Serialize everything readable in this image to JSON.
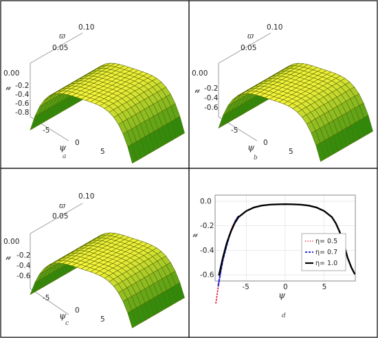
{
  "panels": {
    "a": {
      "letter": "a",
      "z_ticks": [
        "-0.2",
        "-0.4",
        "-0.6",
        "-0.8"
      ]
    },
    "b": {
      "letter": "b",
      "z_ticks": [
        "-0.2",
        "-0.4",
        "-0.6"
      ]
    },
    "c": {
      "letter": "c",
      "z_ticks": [
        "-0.2",
        "-0.4",
        "-0.6"
      ]
    },
    "d": {
      "letter": "d"
    }
  },
  "axis_symbols": {
    "x": "ψ",
    "y": "ϖ",
    "z": "𝓊"
  },
  "surface_axes": {
    "x_ticks": [
      "-5",
      "0",
      "5"
    ],
    "y_ticks": [
      "0.00",
      "0.05",
      "0.10"
    ]
  },
  "colors": {
    "surface_light": "#f8f43c",
    "surface_dark": "#2f8a0c",
    "mesh": "#5a6b00",
    "eta05": "#e8193c",
    "eta07": "#1f2fd6",
    "eta10": "#000000"
  },
  "chart_data": [
    {
      "type": "surface",
      "panel": "a",
      "xlabel": "ψ",
      "ylabel": "ϖ",
      "zlabel": "𝓊",
      "xlim": [
        -9,
        9
      ],
      "ylim": [
        0,
        0.1
      ],
      "zlim": [
        -0.85,
        0
      ],
      "grid": true
    },
    {
      "type": "surface",
      "panel": "b",
      "xlabel": "ψ",
      "ylabel": "ϖ",
      "zlabel": "𝓊",
      "xlim": [
        -9,
        9
      ],
      "ylim": [
        0,
        0.1
      ],
      "zlim": [
        -0.7,
        0
      ],
      "grid": true
    },
    {
      "type": "surface",
      "panel": "c",
      "xlabel": "ψ",
      "ylabel": "ϖ",
      "zlabel": "𝓊",
      "xlim": [
        -9,
        9
      ],
      "ylim": [
        0,
        0.1
      ],
      "zlim": [
        -0.65,
        0
      ],
      "grid": true
    },
    {
      "type": "line",
      "panel": "d",
      "xlabel": "ψ",
      "ylabel": "𝓊",
      "xlim": [
        -9,
        9
      ],
      "ylim": [
        -0.65,
        0.05
      ],
      "x_ticks": [
        -5,
        0,
        5
      ],
      "y_ticks": [
        0.0,
        -0.2,
        -0.4,
        -0.6
      ],
      "legend_position": "bottom-right",
      "grid": true,
      "series": [
        {
          "name": "η= 0.5",
          "style": "dotted",
          "x": [
            -8.9,
            -8.6,
            -8.3,
            -8.0,
            -7.6,
            -7.2,
            -6.8,
            -6.4,
            -6.0
          ],
          "y": [
            -0.83,
            -0.7,
            -0.58,
            -0.47,
            -0.37,
            -0.28,
            -0.21,
            -0.16,
            -0.12
          ]
        },
        {
          "name": "η= 0.7",
          "style": "dashed",
          "x": [
            -8.6,
            -8.3,
            -8.0,
            -7.6,
            -7.2,
            -6.8,
            -6.4,
            -6.0
          ],
          "y": [
            -0.69,
            -0.58,
            -0.48,
            -0.38,
            -0.29,
            -0.22,
            -0.16,
            -0.12
          ]
        },
        {
          "name": "η= 1.0",
          "style": "solid",
          "x": [
            -8.5,
            -8.0,
            -7.5,
            -7.0,
            -6.5,
            -6.0,
            -5.0,
            -4.0,
            -3.0,
            -2.0,
            -1.0,
            0.0,
            1.0,
            2.0,
            3.0,
            4.0,
            5.0,
            6.0,
            6.5,
            7.0,
            7.5,
            8.0,
            8.5,
            8.9
          ],
          "y": [
            -0.6,
            -0.46,
            -0.34,
            -0.25,
            -0.18,
            -0.13,
            -0.08,
            -0.05,
            -0.035,
            -0.028,
            -0.025,
            -0.024,
            -0.025,
            -0.028,
            -0.035,
            -0.05,
            -0.08,
            -0.13,
            -0.18,
            -0.25,
            -0.34,
            -0.46,
            -0.54,
            -0.59
          ]
        }
      ]
    }
  ]
}
